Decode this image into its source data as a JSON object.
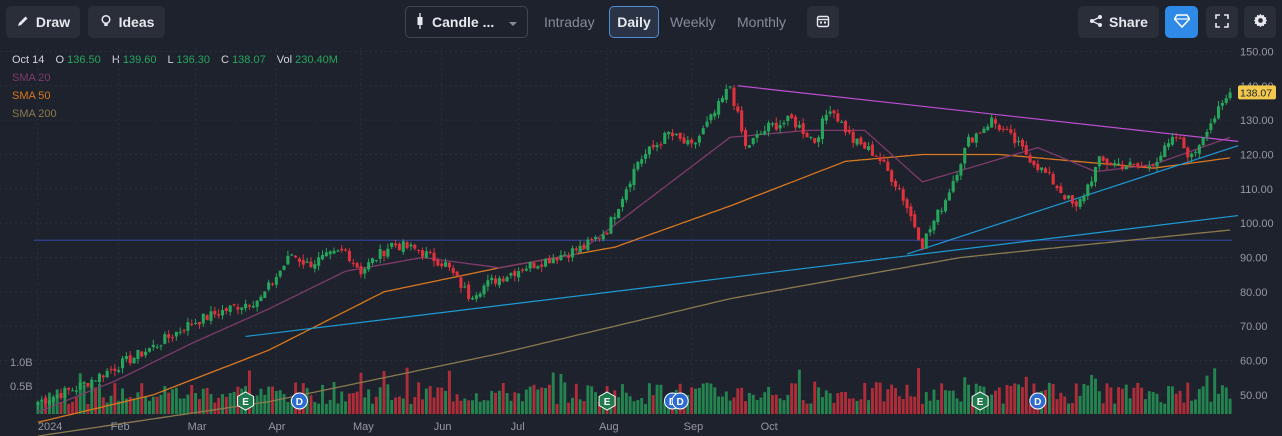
{
  "toolbar": {
    "draw": "Draw",
    "ideas": "Ideas",
    "chart_type": "Candle ...",
    "intervals": [
      "Intraday",
      "Daily",
      "Weekly",
      "Monthly"
    ],
    "active_interval": "Daily",
    "share": "Share"
  },
  "ohlc": {
    "date": "Oct 14",
    "o_label": "O",
    "o": "136.50",
    "h_label": "H",
    "h": "139.60",
    "l_label": "L",
    "l": "136.30",
    "c_label": "C",
    "c": "138.07",
    "vol_label": "Vol",
    "vol": "230.40M"
  },
  "indicators": [
    {
      "name": "SMA 20",
      "color": "#7e3b6b"
    },
    {
      "name": "SMA 50",
      "color": "#d9781f"
    },
    {
      "name": "SMA 200",
      "color": "#8a7a4e"
    }
  ],
  "colors": {
    "up": "#26a65b",
    "down": "#e0323c",
    "trend": "#1d9bd6",
    "resistance": "#c34fd6",
    "hline": "#3748a8",
    "badge_e": "#1f7a4d",
    "badge_d": "#2e6bd1",
    "price_tag": "#f2c94c"
  },
  "chart_data": {
    "type": "candlestick",
    "title": "",
    "x_tick_labels": [
      "2024",
      "Feb",
      "Mar",
      "Apr",
      "May",
      "Jun",
      "Jul",
      "Aug",
      "Sep",
      "Oct"
    ],
    "y_tick_labels": [
      "150.00",
      "140.00",
      "130.00",
      "120.00",
      "110.00",
      "100.00",
      "90.00",
      "80.00",
      "70.00",
      "60.00",
      "50.00"
    ],
    "ylim": [
      45,
      151
    ],
    "volume_tick_labels": [
      "1.0B",
      "0.5B"
    ],
    "last_price": "138.07",
    "close_anchors": [
      [
        0,
        48
      ],
      [
        10,
        52
      ],
      [
        20,
        58
      ],
      [
        30,
        64
      ],
      [
        40,
        71
      ],
      [
        52,
        76
      ],
      [
        58,
        78
      ],
      [
        66,
        91
      ],
      [
        70,
        88
      ],
      [
        80,
        92
      ],
      [
        84,
        86
      ],
      [
        92,
        94
      ],
      [
        99,
        92
      ],
      [
        106,
        88
      ],
      [
        112,
        79
      ],
      [
        118,
        83
      ],
      [
        126,
        87
      ],
      [
        134,
        90
      ],
      [
        142,
        93
      ],
      [
        148,
        98
      ],
      [
        156,
        118
      ],
      [
        164,
        126
      ],
      [
        170,
        122
      ],
      [
        176,
        132
      ],
      [
        180,
        140
      ],
      [
        184,
        122
      ],
      [
        190,
        128
      ],
      [
        196,
        130
      ],
      [
        202,
        124
      ],
      [
        206,
        134
      ],
      [
        212,
        124
      ],
      [
        218,
        120
      ],
      [
        224,
        110
      ],
      [
        230,
        94
      ],
      [
        236,
        107
      ],
      [
        242,
        124
      ],
      [
        248,
        130
      ],
      [
        252,
        126
      ],
      [
        258,
        119
      ],
      [
        264,
        112
      ],
      [
        270,
        104
      ],
      [
        276,
        118
      ],
      [
        282,
        117
      ],
      [
        288,
        116
      ],
      [
        292,
        120
      ],
      [
        296,
        125
      ],
      [
        300,
        119
      ],
      [
        304,
        128
      ],
      [
        308,
        134
      ],
      [
        310,
        138
      ]
    ],
    "sma20_anchors": [
      [
        0,
        45
      ],
      [
        20,
        54
      ],
      [
        40,
        65
      ],
      [
        60,
        75
      ],
      [
        80,
        86
      ],
      [
        100,
        90
      ],
      [
        120,
        87
      ],
      [
        140,
        91
      ],
      [
        160,
        108
      ],
      [
        180,
        125
      ],
      [
        200,
        127
      ],
      [
        215,
        127
      ],
      [
        230,
        112
      ],
      [
        245,
        117
      ],
      [
        260,
        122
      ],
      [
        275,
        115
      ],
      [
        290,
        117
      ],
      [
        310,
        125
      ]
    ],
    "sma50_anchors": [
      [
        0,
        42
      ],
      [
        30,
        50
      ],
      [
        60,
        63
      ],
      [
        90,
        80
      ],
      [
        120,
        87
      ],
      [
        150,
        93
      ],
      [
        180,
        105
      ],
      [
        210,
        118
      ],
      [
        230,
        120
      ],
      [
        250,
        120
      ],
      [
        270,
        118
      ],
      [
        290,
        116
      ],
      [
        310,
        119
      ]
    ],
    "sma200_anchors": [
      [
        0,
        38
      ],
      [
        60,
        48
      ],
      [
        120,
        62
      ],
      [
        180,
        78
      ],
      [
        240,
        90
      ],
      [
        310,
        98
      ]
    ],
    "trendlines": [
      {
        "name": "rising-support",
        "x1": 54,
        "y1": 67,
        "x2": 310,
        "y2": 102
      },
      {
        "name": "august-support",
        "x1": 226,
        "y1": 91,
        "x2": 310,
        "y2": 122
      },
      {
        "name": "resistance",
        "x1": 182,
        "y1": 140,
        "x2": 310,
        "y2": 124
      }
    ],
    "horizontal_line": 95,
    "n_bars": 311,
    "events": [
      {
        "type": "E",
        "bar": 54
      },
      {
        "type": "D",
        "bar": 68
      },
      {
        "type": "E",
        "bar": 148
      },
      {
        "type": "D",
        "bar": 165
      },
      {
        "type": "D",
        "bar": 167
      },
      {
        "type": "E",
        "bar": 245
      },
      {
        "type": "D",
        "bar": 260
      }
    ]
  }
}
